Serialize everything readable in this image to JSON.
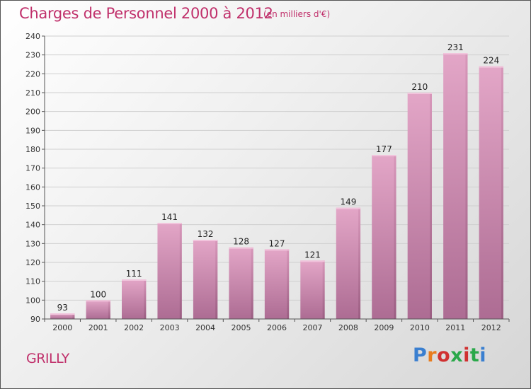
{
  "header": {
    "title": "Charges de Personnel 2000 à 2012",
    "subtitle": "(en milliers d'€)"
  },
  "footer": {
    "commune": "GRILLY",
    "logo_text": "Proxiti",
    "logo_colors": [
      "#3a7fd0",
      "#e87c1e",
      "#d03030",
      "#2aa84a",
      "#d03030",
      "#2aa84a",
      "#3a7fd0"
    ]
  },
  "chart_data": {
    "type": "bar",
    "title": "Charges de Personnel 2000 à 2012",
    "subtitle": "(en milliers d'€)",
    "categories": [
      "2000",
      "2001",
      "2002",
      "2003",
      "2004",
      "2005",
      "2006",
      "2007",
      "2008",
      "2009",
      "2010",
      "2011",
      "2012"
    ],
    "values": [
      93,
      100,
      111,
      141,
      132,
      128,
      127,
      121,
      149,
      177,
      210,
      231,
      224
    ],
    "ylim": [
      90,
      240
    ],
    "yticks": [
      90,
      100,
      110,
      120,
      130,
      140,
      150,
      160,
      170,
      180,
      190,
      200,
      210,
      220,
      230,
      240
    ],
    "grid": true,
    "bar_color": "#d98fb6",
    "bar_color_dark": "#b06f95",
    "data_labels": true
  }
}
